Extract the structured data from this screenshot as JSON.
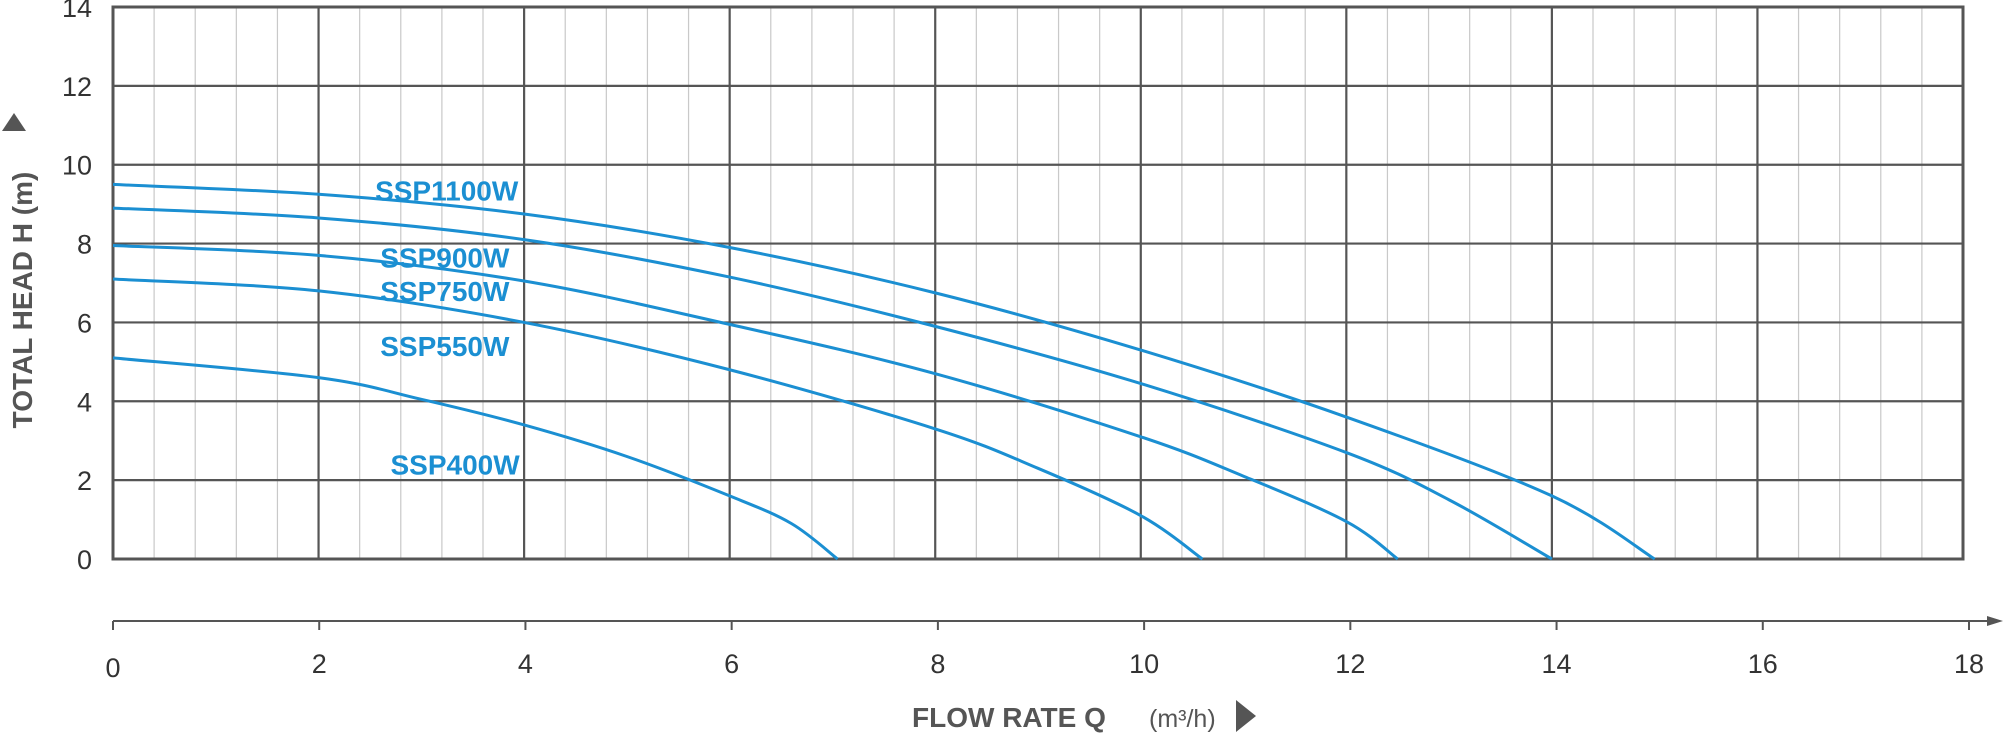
{
  "chart_data": {
    "type": "line",
    "xlabel": "FLOW RATE Q",
    "x_unit": "(m³/h)",
    "ylabel": "TOTAL HEAD H (m)",
    "xlim": [
      0,
      18
    ],
    "plot_xlim": [
      0,
      18
    ],
    "ylim": [
      0,
      14
    ],
    "x_ticks": [
      "0",
      "2",
      "4",
      "6",
      "8",
      "10",
      "12",
      "14",
      "16",
      "18"
    ],
    "y_ticks": [
      "0",
      "2",
      "4",
      "6",
      "8",
      "10",
      "12",
      "14"
    ],
    "grid": true,
    "series_color": "#1b8fd2",
    "series": [
      {
        "name": "SSP1100W",
        "x": [
          0,
          2,
          4,
          6,
          8,
          10,
          12,
          14,
          15
        ],
        "y": [
          9.5,
          9.25,
          8.75,
          7.9,
          6.75,
          5.3,
          3.6,
          1.6,
          0
        ]
      },
      {
        "name": "SSP900W",
        "x": [
          0,
          2,
          4,
          6,
          8,
          10,
          12,
          13,
          14
        ],
        "y": [
          8.9,
          8.65,
          8.1,
          7.15,
          5.9,
          4.45,
          2.7,
          1.5,
          0
        ]
      },
      {
        "name": "SSP750W",
        "x": [
          0,
          2,
          4,
          6,
          8,
          10,
          11,
          12,
          12.5
        ],
        "y": [
          7.95,
          7.7,
          7.05,
          5.95,
          4.7,
          3.1,
          2.1,
          0.95,
          0
        ]
      },
      {
        "name": "SSP550W",
        "x": [
          0,
          2,
          4,
          6,
          8,
          9,
          10,
          10.6
        ],
        "y": [
          7.1,
          6.8,
          6.0,
          4.8,
          3.3,
          2.3,
          1.1,
          0
        ]
      },
      {
        "name": "SSP400W",
        "x": [
          0,
          2,
          3,
          4,
          5,
          6,
          6.6,
          7.05
        ],
        "y": [
          5.1,
          4.6,
          4.05,
          3.4,
          2.6,
          1.6,
          0.9,
          0
        ]
      }
    ]
  }
}
